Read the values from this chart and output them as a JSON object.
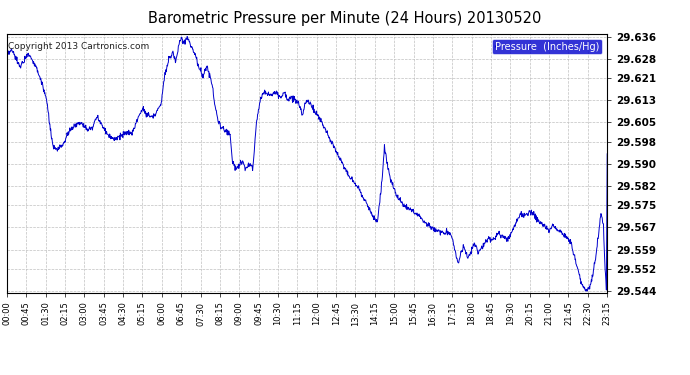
{
  "title": "Barometric Pressure per Minute (24 Hours) 20130520",
  "copyright": "Copyright 2013 Cartronics.com",
  "legend_label": "Pressure  (Inches/Hg)",
  "legend_bg": "#0000CC",
  "legend_text_color": "#FFFFFF",
  "line_color": "#0000CC",
  "background_color": "#FFFFFF",
  "plot_bg_color": "#FFFFFF",
  "grid_color": "#C0C0C0",
  "ylim": [
    29.5435,
    29.637
  ],
  "yticks": [
    29.544,
    29.552,
    29.559,
    29.567,
    29.575,
    29.582,
    29.59,
    29.598,
    29.605,
    29.613,
    29.621,
    29.628,
    29.636
  ],
  "xtick_labels": [
    "00:00",
    "00:45",
    "01:30",
    "02:15",
    "03:00",
    "03:45",
    "04:30",
    "05:15",
    "06:00",
    "06:45",
    "07:30",
    "08:15",
    "09:00",
    "09:45",
    "10:30",
    "11:15",
    "12:00",
    "12:45",
    "13:30",
    "14:15",
    "15:00",
    "15:45",
    "16:30",
    "17:15",
    "18:00",
    "18:45",
    "19:30",
    "20:15",
    "21:00",
    "21:45",
    "22:30",
    "23:15"
  ],
  "keypoints": [
    [
      0,
      29.629
    ],
    [
      10,
      29.631
    ],
    [
      20,
      29.629
    ],
    [
      30,
      29.625
    ],
    [
      40,
      29.627
    ],
    [
      50,
      29.63
    ],
    [
      60,
      29.628
    ],
    [
      70,
      29.625
    ],
    [
      80,
      29.621
    ],
    [
      95,
      29.613
    ],
    [
      110,
      29.596
    ],
    [
      120,
      29.595
    ],
    [
      135,
      29.597
    ],
    [
      150,
      29.602
    ],
    [
      165,
      29.604
    ],
    [
      180,
      29.605
    ],
    [
      195,
      29.602
    ],
    [
      205,
      29.603
    ],
    [
      215,
      29.607
    ],
    [
      225,
      29.605
    ],
    [
      240,
      29.601
    ],
    [
      255,
      29.599
    ],
    [
      270,
      29.6
    ],
    [
      285,
      29.601
    ],
    [
      300,
      29.601
    ],
    [
      315,
      29.607
    ],
    [
      325,
      29.61
    ],
    [
      335,
      29.608
    ],
    [
      350,
      29.607
    ],
    [
      360,
      29.609
    ],
    [
      370,
      29.612
    ],
    [
      378,
      29.622
    ],
    [
      388,
      29.628
    ],
    [
      398,
      29.63
    ],
    [
      405,
      29.627
    ],
    [
      412,
      29.633
    ],
    [
      418,
      29.635
    ],
    [
      425,
      29.634
    ],
    [
      432,
      29.636
    ],
    [
      440,
      29.633
    ],
    [
      450,
      29.63
    ],
    [
      460,
      29.625
    ],
    [
      470,
      29.622
    ],
    [
      480,
      29.625
    ],
    [
      490,
      29.62
    ],
    [
      500,
      29.61
    ],
    [
      508,
      29.605
    ],
    [
      515,
      29.603
    ],
    [
      525,
      29.602
    ],
    [
      535,
      29.601
    ],
    [
      540,
      29.591
    ],
    [
      550,
      29.588
    ],
    [
      558,
      29.59
    ],
    [
      565,
      29.591
    ],
    [
      572,
      29.588
    ],
    [
      580,
      29.59
    ],
    [
      590,
      29.589
    ],
    [
      598,
      29.605
    ],
    [
      608,
      29.614
    ],
    [
      618,
      29.616
    ],
    [
      628,
      29.615
    ],
    [
      638,
      29.615
    ],
    [
      645,
      29.616
    ],
    [
      655,
      29.614
    ],
    [
      665,
      29.616
    ],
    [
      675,
      29.613
    ],
    [
      682,
      29.614
    ],
    [
      690,
      29.613
    ],
    [
      700,
      29.612
    ],
    [
      708,
      29.607
    ],
    [
      715,
      29.612
    ],
    [
      722,
      29.613
    ],
    [
      730,
      29.611
    ],
    [
      738,
      29.609
    ],
    [
      748,
      29.607
    ],
    [
      758,
      29.604
    ],
    [
      768,
      29.601
    ],
    [
      778,
      29.598
    ],
    [
      788,
      29.595
    ],
    [
      798,
      29.592
    ],
    [
      808,
      29.589
    ],
    [
      818,
      29.586
    ],
    [
      828,
      29.584
    ],
    [
      838,
      29.582
    ],
    [
      848,
      29.58
    ],
    [
      858,
      29.577
    ],
    [
      868,
      29.574
    ],
    [
      878,
      29.571
    ],
    [
      888,
      29.569
    ],
    [
      898,
      29.582
    ],
    [
      905,
      29.596
    ],
    [
      912,
      29.59
    ],
    [
      920,
      29.584
    ],
    [
      930,
      29.58
    ],
    [
      940,
      29.577
    ],
    [
      950,
      29.575
    ],
    [
      960,
      29.574
    ],
    [
      970,
      29.573
    ],
    [
      980,
      29.572
    ],
    [
      990,
      29.571
    ],
    [
      1000,
      29.569
    ],
    [
      1010,
      29.568
    ],
    [
      1018,
      29.567
    ],
    [
      1025,
      29.566
    ],
    [
      1032,
      29.566
    ],
    [
      1040,
      29.565
    ],
    [
      1048,
      29.565
    ],
    [
      1055,
      29.565
    ],
    [
      1062,
      29.565
    ],
    [
      1070,
      29.562
    ],
    [
      1075,
      29.558
    ],
    [
      1082,
      29.554
    ],
    [
      1088,
      29.558
    ],
    [
      1095,
      29.56
    ],
    [
      1100,
      29.558
    ],
    [
      1105,
      29.556
    ],
    [
      1110,
      29.557
    ],
    [
      1115,
      29.559
    ],
    [
      1120,
      29.561
    ],
    [
      1125,
      29.56
    ],
    [
      1130,
      29.558
    ],
    [
      1140,
      29.56
    ],
    [
      1148,
      29.562
    ],
    [
      1155,
      29.563
    ],
    [
      1162,
      29.562
    ],
    [
      1170,
      29.563
    ],
    [
      1178,
      29.565
    ],
    [
      1185,
      29.564
    ],
    [
      1195,
      29.563
    ],
    [
      1202,
      29.563
    ],
    [
      1210,
      29.565
    ],
    [
      1218,
      29.568
    ],
    [
      1225,
      29.57
    ],
    [
      1232,
      29.572
    ],
    [
      1240,
      29.571
    ],
    [
      1248,
      29.572
    ],
    [
      1255,
      29.573
    ],
    [
      1262,
      29.572
    ],
    [
      1270,
      29.57
    ],
    [
      1278,
      29.569
    ],
    [
      1285,
      29.568
    ],
    [
      1292,
      29.567
    ],
    [
      1300,
      29.566
    ],
    [
      1308,
      29.568
    ],
    [
      1315,
      29.567
    ],
    [
      1322,
      29.566
    ],
    [
      1330,
      29.565
    ],
    [
      1338,
      29.564
    ],
    [
      1345,
      29.563
    ],
    [
      1352,
      29.561
    ],
    [
      1360,
      29.557
    ],
    [
      1368,
      29.552
    ],
    [
      1375,
      29.548
    ],
    [
      1382,
      29.545
    ],
    [
      1390,
      29.544
    ],
    [
      1398,
      29.546
    ],
    [
      1405,
      29.55
    ],
    [
      1412,
      29.557
    ],
    [
      1418,
      29.565
    ],
    [
      1424,
      29.572
    ],
    [
      1430,
      29.568
    ],
    [
      1434,
      29.552
    ],
    [
      1437,
      29.545
    ],
    [
      1439,
      29.593
    ]
  ]
}
